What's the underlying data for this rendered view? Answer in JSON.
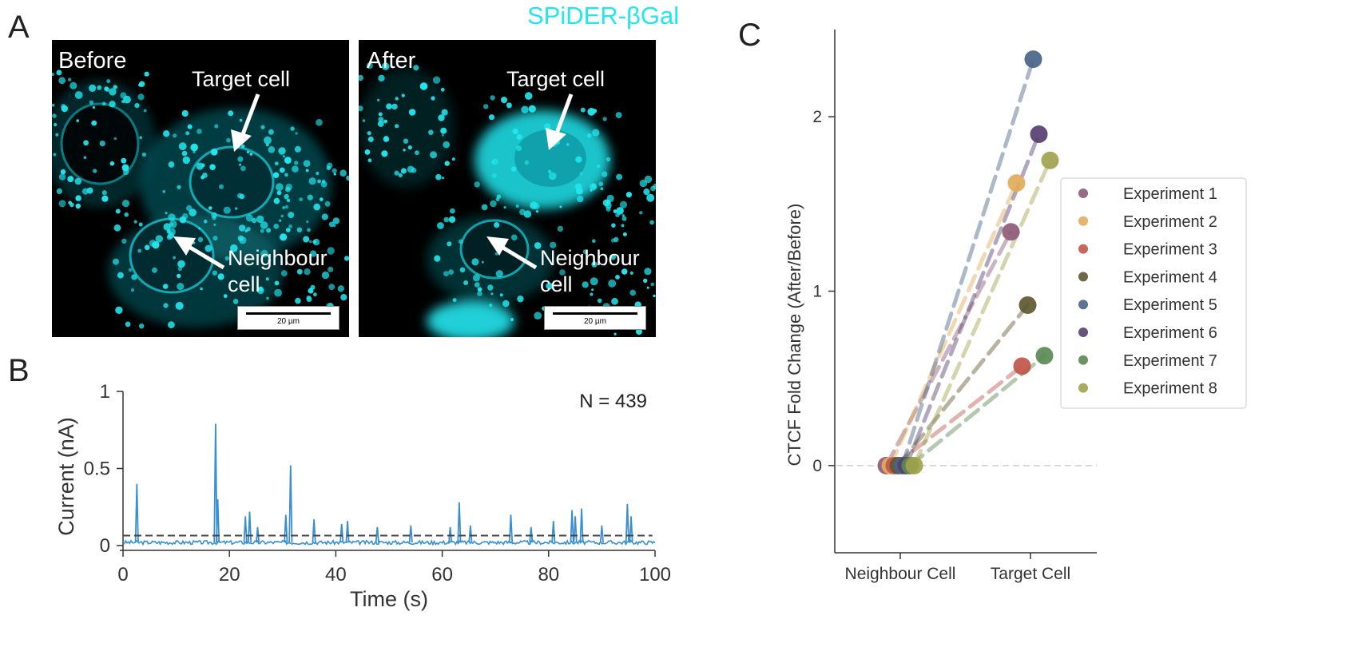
{
  "panels": {
    "a_letter": "A",
    "b_letter": "B",
    "c_letter": "C"
  },
  "micrographs": {
    "stain_label": "SPiDER-βGal",
    "before_label": "Before",
    "after_label": "After",
    "target_label": "Target cell",
    "neighbour_label_line1": "Neighbour",
    "neighbour_label_line2": "cell",
    "scalebar_label": "20 µm",
    "stain_color": "#22e6ee"
  },
  "chart_data": [
    {
      "type": "line",
      "panel": "B",
      "xlabel": "Time (s)",
      "ylabel": "Current (nA)",
      "xlim": [
        0,
        100
      ],
      "ylim": [
        0,
        1
      ],
      "xticks": [
        0,
        20,
        40,
        60,
        80,
        100
      ],
      "yticks": [
        0,
        0.5,
        1
      ],
      "ytick_labels": [
        "0",
        "0.5",
        "1"
      ],
      "annotation": "N = 439",
      "threshold": 0.065,
      "baseline": 0.02,
      "series_color": "#3a8fd0",
      "spikes": [
        {
          "x": 2.6,
          "y": 0.4
        },
        {
          "x": 17.4,
          "y": 0.79
        },
        {
          "x": 17.8,
          "y": 0.3
        },
        {
          "x": 23.0,
          "y": 0.19
        },
        {
          "x": 23.8,
          "y": 0.22
        },
        {
          "x": 25.3,
          "y": 0.12
        },
        {
          "x": 30.6,
          "y": 0.2
        },
        {
          "x": 31.5,
          "y": 0.52
        },
        {
          "x": 35.9,
          "y": 0.17
        },
        {
          "x": 41.1,
          "y": 0.14
        },
        {
          "x": 42.2,
          "y": 0.16
        },
        {
          "x": 47.8,
          "y": 0.12
        },
        {
          "x": 54.1,
          "y": 0.13
        },
        {
          "x": 61.5,
          "y": 0.12
        },
        {
          "x": 63.2,
          "y": 0.28
        },
        {
          "x": 65.3,
          "y": 0.13
        },
        {
          "x": 72.9,
          "y": 0.2
        },
        {
          "x": 76.7,
          "y": 0.12
        },
        {
          "x": 80.9,
          "y": 0.16
        },
        {
          "x": 84.4,
          "y": 0.23
        },
        {
          "x": 85.0,
          "y": 0.19
        },
        {
          "x": 86.2,
          "y": 0.24
        },
        {
          "x": 90.0,
          "y": 0.13
        },
        {
          "x": 94.8,
          "y": 0.27
        },
        {
          "x": 95.5,
          "y": 0.19
        }
      ]
    },
    {
      "type": "scatter",
      "panel": "C",
      "ylabel": "CTCF Fold Change (After/Before)",
      "categories": [
        "Neighbour Cell",
        "Target Cell"
      ],
      "ylim": [
        -0.5,
        2.5
      ],
      "yticks": [
        0,
        1,
        2
      ],
      "reference_line": 0,
      "legend_position": "right",
      "series": [
        {
          "name": "Experiment 1",
          "color": "#8e5a78",
          "values": [
            0,
            1.34
          ]
        },
        {
          "name": "Experiment 2",
          "color": "#e2ab5a",
          "values": [
            0,
            1.62
          ]
        },
        {
          "name": "Experiment 3",
          "color": "#c0564a",
          "values": [
            0,
            0.57
          ]
        },
        {
          "name": "Experiment 4",
          "color": "#5e5830",
          "values": [
            0,
            0.92
          ]
        },
        {
          "name": "Experiment 5",
          "color": "#4a6486",
          "values": [
            0,
            2.33
          ]
        },
        {
          "name": "Experiment 6",
          "color": "#56406e",
          "values": [
            0,
            1.9
          ]
        },
        {
          "name": "Experiment 7",
          "color": "#5a8a52",
          "values": [
            0,
            0.63
          ]
        },
        {
          "name": "Experiment 8",
          "color": "#a1a24c",
          "values": [
            0,
            1.75
          ]
        }
      ]
    }
  ]
}
